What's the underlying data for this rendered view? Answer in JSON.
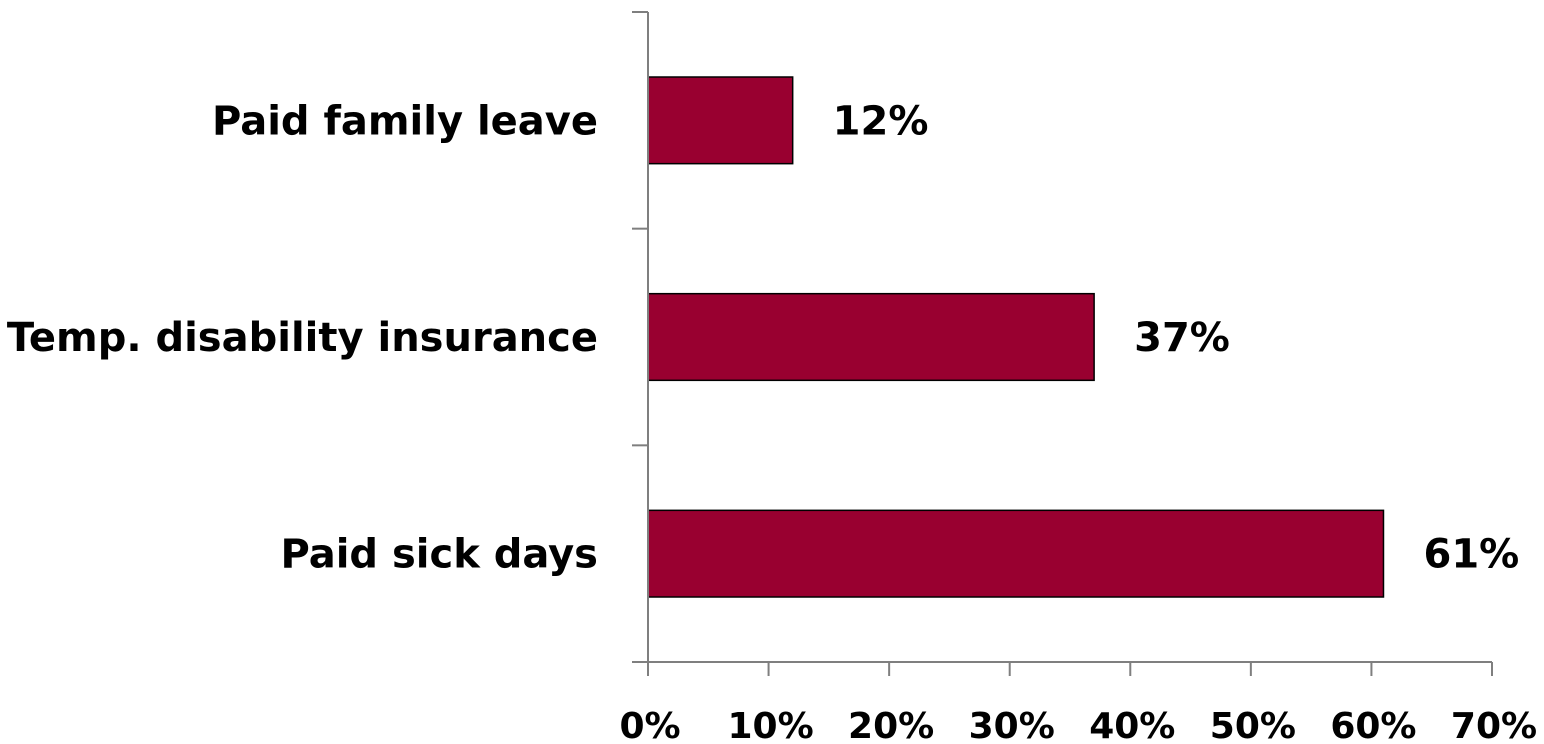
{
  "chart_data": {
    "type": "bar",
    "orientation": "horizontal",
    "categories": [
      "Paid family leave",
      "Temp. disability insurance",
      "Paid sick days"
    ],
    "values": [
      12,
      37,
      61
    ],
    "data_labels": [
      "12%",
      "37%",
      "61%"
    ],
    "xlim": [
      0,
      70
    ],
    "x_ticks": [
      0,
      10,
      20,
      30,
      40,
      50,
      60,
      70
    ],
    "x_tick_labels": [
      "0%",
      "10%",
      "20%",
      "30%",
      "40%",
      "50%",
      "60%",
      "70%"
    ],
    "title": "",
    "xlabel": "",
    "ylabel": "",
    "grid": false,
    "bar_color": "#990030"
  }
}
